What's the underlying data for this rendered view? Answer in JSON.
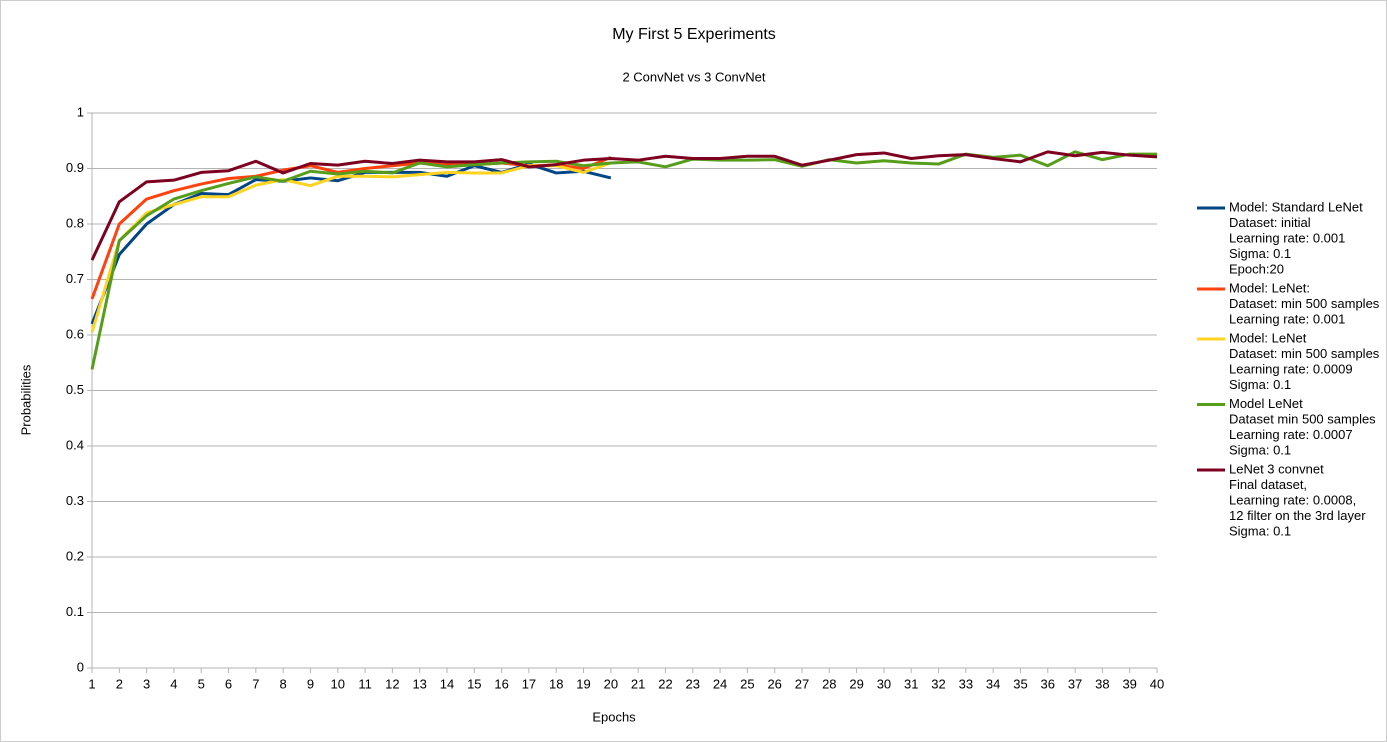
{
  "chart_data": {
    "type": "line",
    "title": "My First 5 Experiments",
    "subtitle": "2 ConvNet vs 3 ConvNet",
    "x_label": "Epochs",
    "y_label": "Probabilities",
    "x": [
      1,
      2,
      3,
      4,
      5,
      6,
      7,
      8,
      9,
      10,
      11,
      12,
      13,
      14,
      15,
      16,
      17,
      18,
      19,
      20,
      21,
      22,
      23,
      24,
      25,
      26,
      27,
      28,
      29,
      30,
      31,
      32,
      33,
      34,
      35,
      36,
      37,
      38,
      39,
      40
    ],
    "xlim": [
      1,
      40
    ],
    "xticks": [
      1,
      2,
      3,
      4,
      5,
      6,
      7,
      8,
      9,
      10,
      11,
      12,
      13,
      14,
      15,
      16,
      17,
      18,
      19,
      20,
      21,
      22,
      23,
      24,
      25,
      26,
      27,
      28,
      29,
      30,
      31,
      32,
      33,
      34,
      35,
      36,
      37,
      38,
      39,
      40
    ],
    "ylim": [
      0,
      1
    ],
    "yticks": [
      0,
      0.1,
      0.2,
      0.3,
      0.4,
      0.5,
      0.6,
      0.7,
      0.8,
      0.9,
      1
    ],
    "grid": true,
    "legend": "right",
    "series": [
      {
        "name": [
          "Model: Standard LeNet",
          "Dataset: initial",
          "Learning rate: 0.001",
          "Sigma: 0.1",
          "Epoch:20"
        ],
        "color": "#004586",
        "values": [
          0.62,
          0.745,
          0.8,
          0.835,
          0.855,
          0.853,
          0.88,
          0.877,
          0.883,
          0.878,
          0.893,
          0.893,
          0.893,
          0.886,
          0.905,
          0.893,
          0.908,
          0.892,
          0.895,
          0.883,
          null,
          null,
          null,
          null,
          null,
          null,
          null,
          null,
          null,
          null,
          null,
          null,
          null,
          null,
          null,
          null,
          null,
          null,
          null,
          null
        ]
      },
      {
        "name": [
          "Model: LeNet:",
          "Dataset: min 500 samples",
          "Learning rate: 0.001"
        ],
        "color": "#ff420e",
        "values": [
          0.665,
          0.8,
          0.845,
          0.86,
          0.872,
          0.882,
          0.886,
          0.897,
          0.905,
          0.893,
          0.9,
          0.905,
          0.91,
          0.908,
          0.907,
          0.91,
          0.905,
          0.906,
          0.9,
          0.92,
          null,
          null,
          null,
          null,
          null,
          null,
          null,
          null,
          null,
          null,
          null,
          null,
          null,
          null,
          null,
          null,
          null,
          null,
          null,
          null
        ]
      },
      {
        "name": [
          "Model: LeNet",
          "Dataset: min 500 samples",
          "Learning rate: 0.0009",
          "Sigma: 0.1"
        ],
        "color": "#ffd320",
        "values": [
          0.605,
          0.77,
          0.82,
          0.835,
          0.849,
          0.849,
          0.87,
          0.88,
          0.869,
          0.886,
          0.886,
          0.885,
          0.889,
          0.893,
          0.892,
          0.892,
          0.905,
          0.905,
          0.893,
          0.91,
          null,
          null,
          null,
          null,
          null,
          null,
          null,
          null,
          null,
          null,
          null,
          null,
          null,
          null,
          null,
          null,
          null,
          null,
          null,
          null
        ]
      },
      {
        "name": [
          "Model LeNet",
          "Dataset min 500 samples",
          "Learning rate: 0.0007",
          "Sigma: 0.1"
        ],
        "color": "#579d1c",
        "values": [
          0.538,
          0.77,
          0.815,
          0.845,
          0.86,
          0.873,
          0.885,
          0.877,
          0.895,
          0.89,
          0.895,
          0.892,
          0.91,
          0.903,
          0.907,
          0.91,
          0.912,
          0.913,
          0.905,
          0.91,
          0.912,
          0.903,
          0.917,
          0.915,
          0.915,
          0.916,
          0.904,
          0.916,
          0.91,
          0.914,
          0.91,
          0.908,
          0.926,
          0.92,
          0.924,
          0.905,
          0.93,
          0.916,
          0.926,
          0.926
        ]
      },
      {
        "name": [
          "LeNet 3 convnet",
          "Final dataset,",
          "Learning rate: 0.0008,",
          "12 filter on the 3rd layer",
          "Sigma: 0.1"
        ],
        "color": "#7e0021",
        "values": [
          0.735,
          0.84,
          0.876,
          0.879,
          0.893,
          0.896,
          0.913,
          0.892,
          0.909,
          0.906,
          0.913,
          0.909,
          0.915,
          0.912,
          0.912,
          0.916,
          0.903,
          0.907,
          0.915,
          0.918,
          0.915,
          0.922,
          0.918,
          0.918,
          0.922,
          0.922,
          0.906,
          0.915,
          0.925,
          0.928,
          0.918,
          0.923,
          0.925,
          0.918,
          0.912,
          0.93,
          0.923,
          0.929,
          0.924,
          0.921
        ]
      }
    ]
  }
}
